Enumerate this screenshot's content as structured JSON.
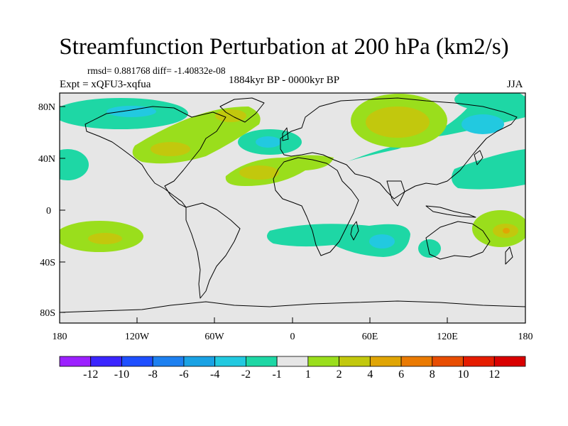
{
  "title": "Streamfunction Perturbation at 200 hPa (km2/s)",
  "stats": "rmsd= 0.881768 diff= -1.40832e-08",
  "experiment": "Expt = xQFU3-xqfua",
  "period": "1884kyr BP - 0000kyr BP",
  "season": "JJA",
  "lat_ticks": [
    "80N",
    "40N",
    "0",
    "40S",
    "80S"
  ],
  "lon_ticks": [
    "180",
    "120W",
    "60W",
    "0",
    "60E",
    "120E",
    "180"
  ],
  "colorbar": {
    "labels": [
      "-12",
      "-10",
      "-8",
      "-6",
      "-4",
      "-2",
      "-1",
      "1",
      "2",
      "4",
      "6",
      "8",
      "10",
      "12"
    ],
    "colors": [
      "#9c21ff",
      "#3b25ff",
      "#1e4fff",
      "#1d80f0",
      "#1aa2e4",
      "#22c9e0",
      "#1ed7a5",
      "#e6e6e6",
      "#9ade1c",
      "#c2c80d",
      "#e0a504",
      "#ea7a02",
      "#e84d02",
      "#e51c00",
      "#d90000"
    ]
  },
  "map_colors": {
    "background": "#e6e6e6",
    "green": "#1ed7a5",
    "cyan": "#22c9e0",
    "lime": "#9ade1c",
    "olive": "#c2c80d",
    "orange": "#e0a504"
  }
}
